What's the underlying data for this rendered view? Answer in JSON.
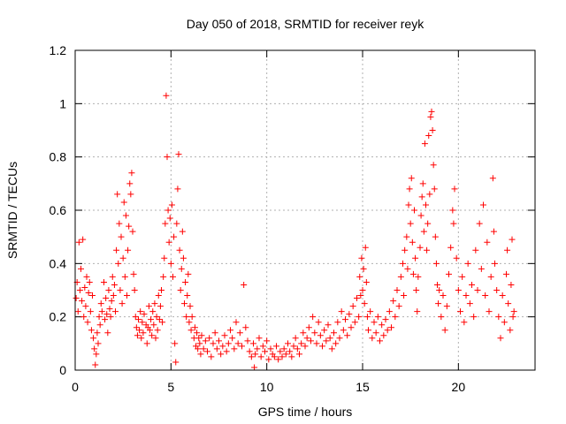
{
  "chart_data": {
    "type": "scatter",
    "title": "Day 050 of 2018, SRMTID for receiver reyk",
    "xlabel": "GPS time / hours",
    "ylabel": "SRMTID / TECUs",
    "xlim": [
      0,
      24
    ],
    "ylim": [
      0,
      1.2
    ],
    "xticks": [
      0,
      5,
      10,
      15,
      20
    ],
    "xtick_labels": [
      "0",
      "5",
      "10",
      "15",
      "20"
    ],
    "yticks": [
      0,
      0.2,
      0.4,
      0.6,
      0.8,
      1.0,
      1.2
    ],
    "ytick_labels": [
      "0",
      "0.2",
      "0.4",
      "0.6",
      "0.8",
      "1",
      "1.2"
    ],
    "grid": true,
    "marker": "+",
    "color": "#ff0000",
    "series": [
      {
        "name": "SRMTID",
        "points": [
          [
            0.05,
            0.27
          ],
          [
            0.1,
            0.33
          ],
          [
            0.15,
            0.22
          ],
          [
            0.2,
            0.48
          ],
          [
            0.25,
            0.3
          ],
          [
            0.3,
            0.38
          ],
          [
            0.35,
            0.26
          ],
          [
            0.4,
            0.49
          ],
          [
            0.45,
            0.2
          ],
          [
            0.5,
            0.31
          ],
          [
            0.55,
            0.24
          ],
          [
            0.6,
            0.35
          ],
          [
            0.65,
            0.18
          ],
          [
            0.7,
            0.29
          ],
          [
            0.75,
            0.33
          ],
          [
            0.8,
            0.22
          ],
          [
            0.85,
            0.15
          ],
          [
            0.9,
            0.28
          ],
          [
            0.95,
            0.12
          ],
          [
            1.0,
            0.08
          ],
          [
            1.05,
            0.02
          ],
          [
            1.1,
            0.06
          ],
          [
            1.15,
            0.14
          ],
          [
            1.2,
            0.1
          ],
          [
            1.25,
            0.2
          ],
          [
            1.3,
            0.17
          ],
          [
            1.35,
            0.25
          ],
          [
            1.4,
            0.22
          ],
          [
            1.5,
            0.33
          ],
          [
            1.55,
            0.19
          ],
          [
            1.6,
            0.27
          ],
          [
            1.65,
            0.21
          ],
          [
            1.7,
            0.14
          ],
          [
            1.75,
            0.3
          ],
          [
            1.8,
            0.23
          ],
          [
            1.85,
            0.2
          ],
          [
            1.9,
            0.26
          ],
          [
            1.95,
            0.35
          ],
          [
            2.0,
            0.28
          ],
          [
            2.05,
            0.32
          ],
          [
            2.1,
            0.22
          ],
          [
            2.15,
            0.45
          ],
          [
            2.2,
            0.66
          ],
          [
            2.25,
            0.4
          ],
          [
            2.3,
            0.55
          ],
          [
            2.35,
            0.3
          ],
          [
            2.4,
            0.5
          ],
          [
            2.45,
            0.25
          ],
          [
            2.5,
            0.42
          ],
          [
            2.55,
            0.63
          ],
          [
            2.6,
            0.35
          ],
          [
            2.65,
            0.58
          ],
          [
            2.7,
            0.28
          ],
          [
            2.75,
            0.45
          ],
          [
            2.8,
            0.54
          ],
          [
            2.85,
            0.7
          ],
          [
            2.9,
            0.66
          ],
          [
            2.95,
            0.74
          ],
          [
            3.0,
            0.52
          ],
          [
            3.05,
            0.36
          ],
          [
            3.1,
            0.3
          ],
          [
            3.15,
            0.2
          ],
          [
            3.2,
            0.16
          ],
          [
            3.25,
            0.13
          ],
          [
            3.3,
            0.19
          ],
          [
            3.35,
            0.15
          ],
          [
            3.4,
            0.22
          ],
          [
            3.45,
            0.12
          ],
          [
            3.5,
            0.18
          ],
          [
            3.55,
            0.14
          ],
          [
            3.6,
            0.21
          ],
          [
            3.7,
            0.17
          ],
          [
            3.75,
            0.1
          ],
          [
            3.8,
            0.16
          ],
          [
            3.85,
            0.24
          ],
          [
            3.9,
            0.15
          ],
          [
            3.95,
            0.19
          ],
          [
            4.0,
            0.13
          ],
          [
            4.05,
            0.22
          ],
          [
            4.1,
            0.17
          ],
          [
            4.15,
            0.25
          ],
          [
            4.2,
            0.12
          ],
          [
            4.25,
            0.2
          ],
          [
            4.3,
            0.15
          ],
          [
            4.35,
            0.28
          ],
          [
            4.4,
            0.19
          ],
          [
            4.45,
            0.24
          ],
          [
            4.5,
            0.3
          ],
          [
            4.55,
            0.18
          ],
          [
            4.6,
            0.35
          ],
          [
            4.65,
            0.42
          ],
          [
            4.7,
            0.55
          ],
          [
            4.75,
            1.03
          ],
          [
            4.8,
            0.8
          ],
          [
            4.85,
            0.6
          ],
          [
            4.9,
            0.48
          ],
          [
            4.95,
            0.57
          ],
          [
            5.0,
            0.4
          ],
          [
            5.05,
            0.62
          ],
          [
            5.1,
            0.35
          ],
          [
            5.15,
            0.5
          ],
          [
            5.2,
            0.1
          ],
          [
            5.25,
            0.03
          ],
          [
            5.3,
            0.55
          ],
          [
            5.35,
            0.68
          ],
          [
            5.4,
            0.81
          ],
          [
            5.45,
            0.45
          ],
          [
            5.5,
            0.3
          ],
          [
            5.55,
            0.38
          ],
          [
            5.6,
            0.52
          ],
          [
            5.65,
            0.42
          ],
          [
            5.7,
            0.25
          ],
          [
            5.75,
            0.33
          ],
          [
            5.8,
            0.2
          ],
          [
            5.85,
            0.28
          ],
          [
            5.9,
            0.36
          ],
          [
            5.95,
            0.18
          ],
          [
            6.0,
            0.24
          ],
          [
            6.05,
            0.15
          ],
          [
            6.1,
            0.2
          ],
          [
            6.2,
            0.12
          ],
          [
            6.25,
            0.16
          ],
          [
            6.3,
            0.09
          ],
          [
            6.35,
            0.14
          ],
          [
            6.4,
            0.08
          ],
          [
            6.45,
            0.12
          ],
          [
            6.5,
            0.1
          ],
          [
            6.55,
            0.06
          ],
          [
            6.6,
            0.13
          ],
          [
            6.7,
            0.08
          ],
          [
            6.8,
            0.11
          ],
          [
            6.9,
            0.07
          ],
          [
            7.0,
            0.12
          ],
          [
            7.1,
            0.05
          ],
          [
            7.2,
            0.1
          ],
          [
            7.3,
            0.14
          ],
          [
            7.4,
            0.08
          ],
          [
            7.5,
            0.11
          ],
          [
            7.6,
            0.06
          ],
          [
            7.7,
            0.09
          ],
          [
            7.8,
            0.13
          ],
          [
            7.9,
            0.07
          ],
          [
            8.0,
            0.1
          ],
          [
            8.1,
            0.15
          ],
          [
            8.2,
            0.12
          ],
          [
            8.3,
            0.08
          ],
          [
            8.4,
            0.18
          ],
          [
            8.5,
            0.1
          ],
          [
            8.6,
            0.14
          ],
          [
            8.7,
            0.09
          ],
          [
            8.8,
            0.32
          ],
          [
            8.9,
            0.16
          ],
          [
            9.0,
            0.11
          ],
          [
            9.1,
            0.07
          ],
          [
            9.2,
            0.05
          ],
          [
            9.3,
            0.1
          ],
          [
            9.35,
            0.01
          ],
          [
            9.4,
            0.06
          ],
          [
            9.5,
            0.08
          ],
          [
            9.6,
            0.12
          ],
          [
            9.7,
            0.05
          ],
          [
            9.8,
            0.09
          ],
          [
            9.9,
            0.07
          ],
          [
            10.0,
            0.11
          ],
          [
            10.1,
            0.04
          ],
          [
            10.2,
            0.08
          ],
          [
            10.3,
            0.06
          ],
          [
            10.4,
            0.05
          ],
          [
            10.5,
            0.09
          ],
          [
            10.6,
            0.04
          ],
          [
            10.7,
            0.07
          ],
          [
            10.8,
            0.05
          ],
          [
            10.9,
            0.08
          ],
          [
            11.0,
            0.06
          ],
          [
            11.1,
            0.1
          ],
          [
            11.2,
            0.07
          ],
          [
            11.3,
            0.05
          ],
          [
            11.4,
            0.09
          ],
          [
            11.5,
            0.12
          ],
          [
            11.6,
            0.08
          ],
          [
            11.7,
            0.06
          ],
          [
            11.8,
            0.1
          ],
          [
            11.9,
            0.14
          ],
          [
            12.0,
            0.09
          ],
          [
            12.1,
            0.12
          ],
          [
            12.2,
            0.16
          ],
          [
            12.3,
            0.11
          ],
          [
            12.4,
            0.2
          ],
          [
            12.5,
            0.14
          ],
          [
            12.6,
            0.1
          ],
          [
            12.7,
            0.18
          ],
          [
            12.8,
            0.13
          ],
          [
            12.9,
            0.09
          ],
          [
            13.0,
            0.15
          ],
          [
            13.1,
            0.11
          ],
          [
            13.2,
            0.17
          ],
          [
            13.3,
            0.12
          ],
          [
            13.4,
            0.08
          ],
          [
            13.5,
            0.14
          ],
          [
            13.6,
            0.1
          ],
          [
            13.7,
            0.18
          ],
          [
            13.8,
            0.12
          ],
          [
            13.9,
            0.22
          ],
          [
            14.0,
            0.15
          ],
          [
            14.1,
            0.19
          ],
          [
            14.2,
            0.13
          ],
          [
            14.3,
            0.21
          ],
          [
            14.4,
            0.16
          ],
          [
            14.5,
            0.24
          ],
          [
            14.6,
            0.18
          ],
          [
            14.7,
            0.27
          ],
          [
            14.8,
            0.2
          ],
          [
            14.85,
            0.35
          ],
          [
            14.9,
            0.28
          ],
          [
            14.95,
            0.42
          ],
          [
            15.0,
            0.3
          ],
          [
            15.05,
            0.38
          ],
          [
            15.1,
            0.25
          ],
          [
            15.15,
            0.46
          ],
          [
            15.2,
            0.33
          ],
          [
            15.25,
            0.2
          ],
          [
            15.3,
            0.15
          ],
          [
            15.4,
            0.22
          ],
          [
            15.5,
            0.12
          ],
          [
            15.6,
            0.18
          ],
          [
            15.7,
            0.14
          ],
          [
            15.8,
            0.2
          ],
          [
            15.9,
            0.11
          ],
          [
            16.0,
            0.17
          ],
          [
            16.1,
            0.13
          ],
          [
            16.2,
            0.19
          ],
          [
            16.3,
            0.15
          ],
          [
            16.4,
            0.22
          ],
          [
            16.5,
            0.16
          ],
          [
            16.6,
            0.26
          ],
          [
            16.7,
            0.2
          ],
          [
            16.8,
            0.3
          ],
          [
            16.9,
            0.24
          ],
          [
            17.0,
            0.35
          ],
          [
            17.1,
            0.4
          ],
          [
            17.15,
            0.28
          ],
          [
            17.2,
            0.45
          ],
          [
            17.3,
            0.5
          ],
          [
            17.35,
            0.38
          ],
          [
            17.4,
            0.62
          ],
          [
            17.45,
            0.68
          ],
          [
            17.5,
            0.55
          ],
          [
            17.55,
            0.72
          ],
          [
            17.6,
            0.48
          ],
          [
            17.65,
            0.36
          ],
          [
            17.7,
            0.6
          ],
          [
            17.75,
            0.42
          ],
          [
            17.8,
            0.3
          ],
          [
            17.85,
            0.22
          ],
          [
            17.9,
            0.35
          ],
          [
            18.0,
            0.46
          ],
          [
            18.05,
            0.58
          ],
          [
            18.1,
            0.65
          ],
          [
            18.15,
            0.7
          ],
          [
            18.2,
            0.52
          ],
          [
            18.25,
            0.85
          ],
          [
            18.3,
            0.62
          ],
          [
            18.35,
            0.45
          ],
          [
            18.4,
            0.55
          ],
          [
            18.45,
            0.88
          ],
          [
            18.5,
            0.66
          ],
          [
            18.55,
            0.95
          ],
          [
            18.6,
            0.97
          ],
          [
            18.65,
            0.9
          ],
          [
            18.7,
            0.77
          ],
          [
            18.75,
            0.68
          ],
          [
            18.8,
            0.5
          ],
          [
            18.85,
            0.4
          ],
          [
            18.9,
            0.32
          ],
          [
            18.95,
            0.25
          ],
          [
            19.0,
            0.3
          ],
          [
            19.1,
            0.2
          ],
          [
            19.2,
            0.28
          ],
          [
            19.3,
            0.15
          ],
          [
            19.4,
            0.24
          ],
          [
            19.5,
            0.36
          ],
          [
            19.6,
            0.46
          ],
          [
            19.7,
            0.6
          ],
          [
            19.75,
            0.55
          ],
          [
            19.8,
            0.68
          ],
          [
            19.9,
            0.42
          ],
          [
            20.0,
            0.3
          ],
          [
            20.1,
            0.22
          ],
          [
            20.2,
            0.35
          ],
          [
            20.3,
            0.18
          ],
          [
            20.4,
            0.28
          ],
          [
            20.5,
            0.4
          ],
          [
            20.6,
            0.25
          ],
          [
            20.7,
            0.32
          ],
          [
            20.8,
            0.2
          ],
          [
            20.9,
            0.45
          ],
          [
            21.0,
            0.3
          ],
          [
            21.1,
            0.55
          ],
          [
            21.2,
            0.38
          ],
          [
            21.3,
            0.62
          ],
          [
            21.4,
            0.28
          ],
          [
            21.5,
            0.48
          ],
          [
            21.6,
            0.22
          ],
          [
            21.7,
            0.35
          ],
          [
            21.8,
            0.72
          ],
          [
            21.85,
            0.52
          ],
          [
            21.9,
            0.4
          ],
          [
            22.0,
            0.3
          ],
          [
            22.1,
            0.2
          ],
          [
            22.2,
            0.12
          ],
          [
            22.3,
            0.28
          ],
          [
            22.4,
            0.18
          ],
          [
            22.5,
            0.36
          ],
          [
            22.55,
            0.45
          ],
          [
            22.6,
            0.25
          ],
          [
            22.7,
            0.15
          ],
          [
            22.75,
            0.32
          ],
          [
            22.8,
            0.49
          ],
          [
            22.85,
            0.2
          ],
          [
            22.9,
            0.22
          ]
        ]
      }
    ]
  }
}
